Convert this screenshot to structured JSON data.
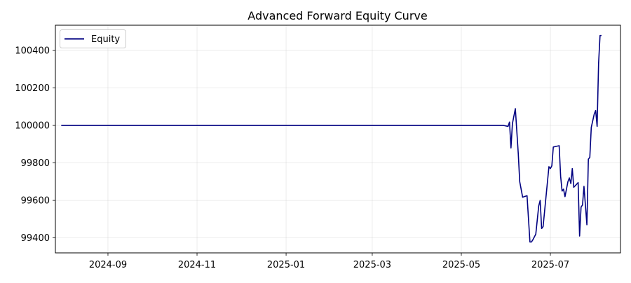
{
  "chart_data": {
    "type": "line",
    "title": "Advanced Forward Equity Curve",
    "xlabel": "",
    "ylabel": "",
    "grid": true,
    "legend_placement": "top-left",
    "xlim": [
      "2024-07-27",
      "2025-08-18"
    ],
    "ylim": [
      99320,
      100535
    ],
    "x_ticks": [
      "2024-09",
      "2024-11",
      "2025-01",
      "2025-03",
      "2025-05",
      "2025-07"
    ],
    "y_ticks": [
      99400,
      99600,
      99800,
      100000,
      100200,
      100400
    ],
    "series": [
      {
        "name": "Equity",
        "color": "#000080",
        "x": [
          "2024-07-31",
          "2025-05-30",
          "2025-06-02",
          "2025-06-03",
          "2025-06-04",
          "2025-06-05",
          "2025-06-07",
          "2025-06-09",
          "2025-06-10",
          "2025-06-12",
          "2025-06-13",
          "2025-06-15",
          "2025-06-17",
          "2025-06-18",
          "2025-06-19",
          "2025-06-21",
          "2025-06-23",
          "2025-06-24",
          "2025-06-25",
          "2025-06-26",
          "2025-06-28",
          "2025-06-30",
          "2025-07-01",
          "2025-07-02",
          "2025-07-03",
          "2025-07-07",
          "2025-07-08",
          "2025-07-09",
          "2025-07-10",
          "2025-07-11",
          "2025-07-13",
          "2025-07-14",
          "2025-07-15",
          "2025-07-16",
          "2025-07-17",
          "2025-07-20",
          "2025-07-21",
          "2025-07-22",
          "2025-07-23",
          "2025-07-24",
          "2025-07-26",
          "2025-07-27",
          "2025-07-28",
          "2025-07-29",
          "2025-07-31",
          "2025-08-01",
          "2025-08-02",
          "2025-08-03",
          "2025-08-04",
          "2025-08-05"
        ],
        "y": [
          100000,
          100000,
          99995,
          100018,
          99880,
          100010,
          100090,
          99850,
          99700,
          99617,
          99620,
          99625,
          99378,
          99378,
          99390,
          99420,
          99570,
          99600,
          99450,
          99460,
          99620,
          99780,
          99770,
          99785,
          99885,
          99892,
          99730,
          99650,
          99660,
          99620,
          99700,
          99720,
          99690,
          99770,
          99670,
          99695,
          99410,
          99565,
          99575,
          99675,
          99470,
          99820,
          99830,
          99990,
          100060,
          100080,
          99995,
          100330,
          100480,
          100480
        ]
      }
    ]
  }
}
